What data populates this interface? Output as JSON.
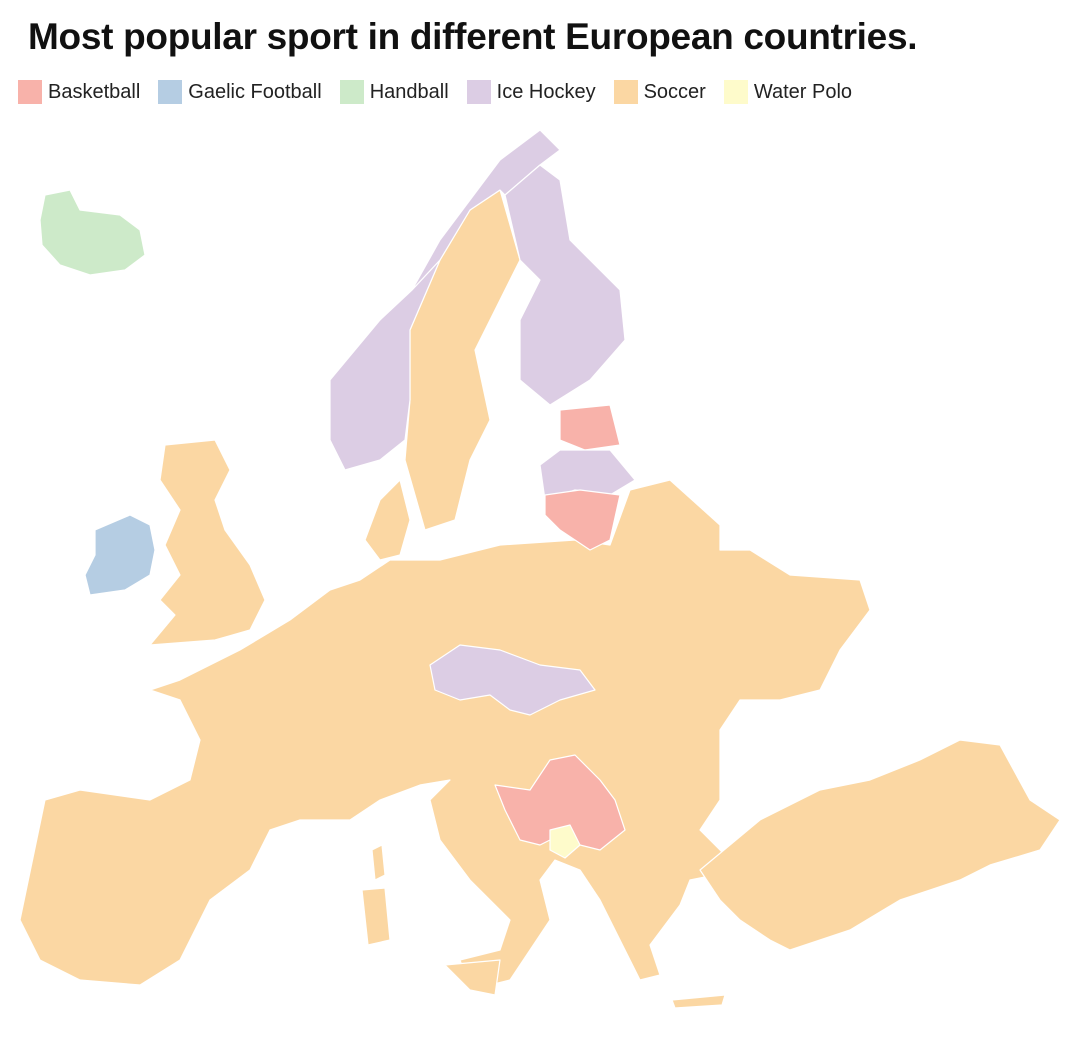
{
  "title": "Most popular sport in different European countries.",
  "legend": [
    {
      "name": "Basketball",
      "color": "#f8b2aa"
    },
    {
      "name": "Gaelic Football",
      "color": "#b5cde3"
    },
    {
      "name": "Handball",
      "color": "#cdeac9"
    },
    {
      "name": "Ice Hockey",
      "color": "#dccde4"
    },
    {
      "name": "Soccer",
      "color": "#fbd7a3"
    },
    {
      "name": "Water Polo",
      "color": "#fefbcb"
    }
  ]
}
